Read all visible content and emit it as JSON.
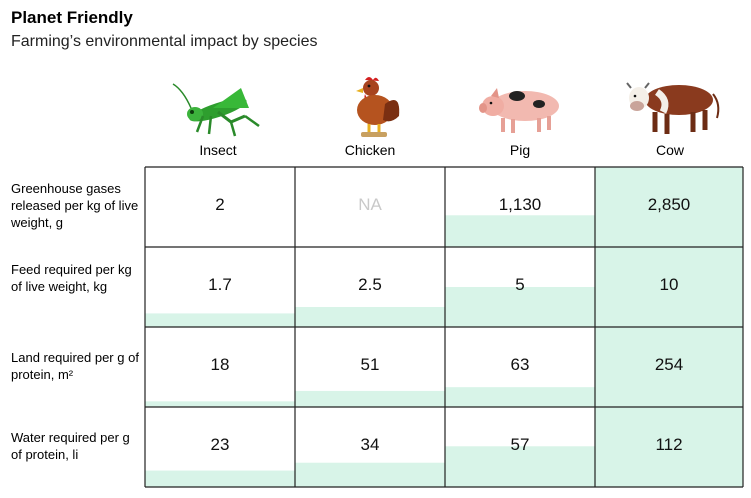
{
  "title": "Planet Friendly",
  "subtitle": "Farming’s environmental impact by species",
  "colors": {
    "fill": "#d8f4e8",
    "na_text": "#c9c9c9",
    "grid": "#222222"
  },
  "chart_data": {
    "type": "table",
    "columns": [
      {
        "label": "Insect",
        "icon": "grasshopper-icon"
      },
      {
        "label": "Chicken",
        "icon": "hen-icon"
      },
      {
        "label": "Pig",
        "icon": "pig-icon"
      },
      {
        "label": "Cow",
        "icon": "cow-icon"
      }
    ],
    "rows": [
      {
        "label": "Greenhouse gases released per kg of live weight, g",
        "display": [
          "2",
          "NA",
          "1,130",
          "2,850"
        ],
        "values": [
          2,
          null,
          1130,
          2850
        ]
      },
      {
        "label": "Feed required per kg of live weight, kg",
        "display": [
          "1.7",
          "2.5",
          "5",
          "10"
        ],
        "values": [
          1.7,
          2.5,
          5,
          10
        ]
      },
      {
        "label": "Land required per g of protein, m²",
        "display": [
          "18",
          "51",
          "63",
          "254"
        ],
        "values": [
          18,
          51,
          63,
          254
        ]
      },
      {
        "label": "Water required per g of protein, li",
        "display": [
          "23",
          "34",
          "57",
          "112"
        ],
        "values": [
          23,
          34,
          57,
          112
        ]
      }
    ]
  }
}
